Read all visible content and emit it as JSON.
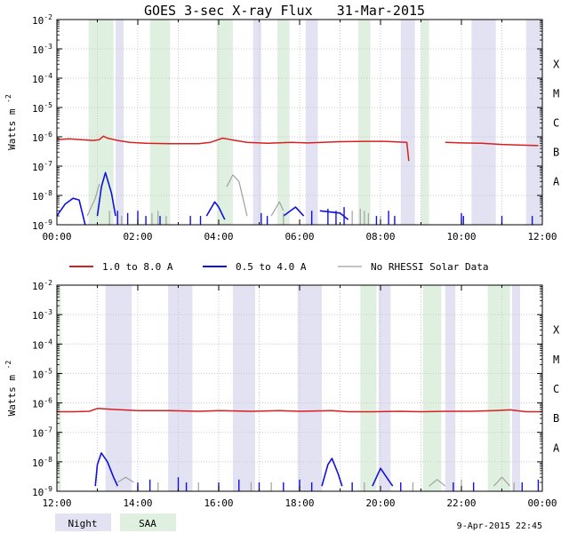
{
  "chart_data": {
    "type": "line",
    "title": "GOES 3-sec X-ray Flux   31-Mar-2015",
    "ylabel": "Watts m",
    "ylabel_sup": "-2",
    "yscale": "log",
    "ylim": [
      1e-09,
      0.01
    ],
    "y_ticks": [
      {
        "exp": "-2"
      },
      {
        "exp": "-3"
      },
      {
        "exp": "-4"
      },
      {
        "exp": "-5"
      },
      {
        "exp": "-6"
      },
      {
        "exp": "-7"
      },
      {
        "exp": "-8"
      },
      {
        "exp": "-9"
      }
    ],
    "y_tick_base": "10",
    "flare_classes": [
      {
        "label": "X",
        "value": 0.0001
      },
      {
        "label": "M",
        "value": 1e-05
      },
      {
        "label": "C",
        "value": 1e-06
      },
      {
        "label": "B",
        "value": 1e-07
      },
      {
        "label": "A",
        "value": 1e-08
      }
    ],
    "legend": {
      "placement": "middle",
      "entries": [
        {
          "label": "1.0 to 8.0 A",
          "color": "#d62020"
        },
        {
          "label": "0.5 to 4.0 A",
          "color": "#1010e0"
        },
        {
          "label": "No RHESSI Solar Data",
          "color": "#a0a0a0"
        }
      ]
    },
    "shade_legend": [
      {
        "label": "Night",
        "color": "#e2e2f2"
      },
      {
        "label": "SAA",
        "color": "#e0f0e0"
      }
    ],
    "footer": "9-Apr-2015 22:45",
    "panels": [
      {
        "x_range_hours": [
          0,
          12
        ],
        "x_tick_labels": [
          "00:00",
          "02:00",
          "04:00",
          "06:00",
          "08:00",
          "10:00",
          "12:00"
        ],
        "night": [
          [
            1.45,
            1.65
          ],
          [
            4.85,
            5.05
          ],
          [
            6.15,
            6.45
          ],
          [
            8.5,
            8.85
          ],
          [
            10.25,
            10.85
          ],
          [
            11.6,
            12
          ]
        ],
        "saa": [
          [
            0.78,
            1.4
          ],
          [
            2.3,
            2.8
          ],
          [
            3.95,
            4.35
          ],
          [
            5.45,
            5.75
          ],
          [
            7.45,
            7.75
          ],
          [
            9.0,
            9.2
          ]
        ],
        "long": [
          [
            0.0,
            8e-07
          ],
          [
            0.3,
            8.5e-07
          ],
          [
            0.6,
            8e-07
          ],
          [
            0.9,
            7.5e-07
          ],
          [
            1.05,
            8e-07
          ],
          [
            1.15,
            1.05e-06
          ],
          [
            1.25,
            9e-07
          ],
          [
            1.5,
            7.5e-07
          ],
          [
            1.8,
            6.5e-07
          ],
          [
            2.2,
            6e-07
          ],
          [
            2.8,
            5.8e-07
          ],
          [
            3.5,
            5.8e-07
          ],
          [
            3.8,
            6.5e-07
          ],
          [
            4.1,
            9e-07
          ],
          [
            4.3,
            8e-07
          ],
          [
            4.7,
            6.5e-07
          ],
          [
            5.2,
            6e-07
          ],
          [
            5.8,
            6.5e-07
          ],
          [
            6.2,
            6.2e-07
          ],
          [
            7.0,
            6.8e-07
          ],
          [
            7.6,
            7e-07
          ],
          [
            8.1,
            7e-07
          ],
          [
            8.65,
            6.5e-07
          ],
          [
            8.7,
            1.5e-07
          ],
          null,
          [
            9.6,
            6.5e-07
          ],
          [
            10.0,
            6.2e-07
          ],
          [
            10.5,
            6e-07
          ],
          [
            11.0,
            5.5e-07
          ],
          [
            11.5,
            5.2e-07
          ],
          [
            11.9,
            5e-07
          ]
        ],
        "short": [
          [
            0.0,
            2e-09
          ],
          [
            0.2,
            5e-09
          ],
          [
            0.4,
            8e-09
          ],
          [
            0.55,
            7e-09
          ],
          [
            0.7,
            1e-09
          ],
          null,
          [
            1.0,
            2e-09
          ],
          [
            1.1,
            2e-08
          ],
          [
            1.2,
            6e-08
          ],
          [
            1.35,
            1.2e-08
          ],
          [
            1.45,
            2e-09
          ],
          null,
          [
            3.7,
            2e-09
          ],
          [
            3.9,
            6e-09
          ],
          [
            4.0,
            4e-09
          ],
          [
            4.15,
            1.5e-09
          ],
          null,
          [
            5.6,
            2e-09
          ],
          [
            5.9,
            4e-09
          ],
          [
            6.1,
            2e-09
          ],
          null,
          [
            6.5,
            3e-09
          ],
          [
            7.0,
            2.5e-09
          ],
          [
            7.2,
            1.5e-09
          ]
        ],
        "gray": [
          [
            0.75,
            2e-09
          ],
          [
            0.95,
            8e-09
          ],
          [
            1.05,
            2.5e-08
          ],
          null,
          [
            4.2,
            2e-08
          ],
          [
            4.35,
            5e-08
          ],
          [
            4.5,
            3e-08
          ],
          [
            4.6,
            8e-09
          ],
          [
            4.7,
            2e-09
          ],
          null,
          [
            5.3,
            2e-09
          ],
          [
            5.5,
            6e-09
          ],
          [
            5.6,
            3e-09
          ]
        ],
        "short_spikes": [
          [
            1.5,
            3e-09
          ],
          [
            1.75,
            2.5e-09
          ],
          [
            2.0,
            3e-09
          ],
          [
            2.2,
            2e-09
          ],
          [
            2.55,
            2e-09
          ],
          [
            3.3,
            2e-09
          ],
          [
            3.55,
            2e-09
          ],
          [
            5.05,
            2.5e-09
          ],
          [
            5.2,
            2e-09
          ],
          [
            6.3,
            3e-09
          ],
          [
            6.7,
            3.5e-09
          ],
          [
            6.9,
            3e-09
          ],
          [
            7.1,
            4e-09
          ],
          [
            7.9,
            2e-09
          ],
          [
            8.2,
            3e-09
          ],
          [
            8.35,
            2e-09
          ],
          [
            10.0,
            2.5e-09
          ],
          [
            10.05,
            2e-09
          ],
          [
            11.0,
            2e-09
          ],
          [
            11.75,
            2e-09
          ]
        ],
        "gray_spikes": [
          [
            1.3,
            3e-09
          ],
          [
            1.6,
            2e-09
          ],
          [
            2.35,
            2.5e-09
          ],
          [
            2.5,
            3e-09
          ],
          [
            2.7,
            2e-09
          ],
          [
            5.6,
            2.5e-09
          ],
          [
            7.3,
            3e-09
          ],
          [
            7.5,
            3.5e-09
          ],
          [
            7.6,
            3e-09
          ],
          [
            7.7,
            2.5e-09
          ],
          [
            8.0,
            2e-09
          ]
        ]
      },
      {
        "x_range_hours": [
          12,
          24
        ],
        "x_tick_labels": [
          "12:00",
          "14:00",
          "16:00",
          "18:00",
          "20:00",
          "22:00",
          "00:00"
        ],
        "night": [
          [
            13.2,
            13.85
          ],
          [
            14.75,
            15.35
          ],
          [
            16.35,
            16.9
          ],
          [
            17.95,
            18.55
          ],
          [
            19.95,
            20.25
          ],
          [
            21.6,
            21.85
          ],
          [
            23.25,
            23.45
          ]
        ],
        "saa": [
          [
            19.5,
            19.9
          ],
          [
            21.05,
            21.5
          ],
          [
            22.65,
            23.2
          ],
          [
            12,
            12.1
          ]
        ],
        "long": [
          [
            12.0,
            5e-07
          ],
          [
            12.4,
            5e-07
          ],
          [
            12.8,
            5.2e-07
          ],
          [
            13.0,
            6.5e-07
          ],
          [
            13.4,
            6e-07
          ],
          [
            14.0,
            5.5e-07
          ],
          [
            14.8,
            5.5e-07
          ],
          [
            15.5,
            5.2e-07
          ],
          [
            16.0,
            5.5e-07
          ],
          [
            16.8,
            5.2e-07
          ],
          [
            17.5,
            5.5e-07
          ],
          [
            18.0,
            5.2e-07
          ],
          [
            18.8,
            5.5e-07
          ],
          [
            19.2,
            5e-07
          ],
          [
            19.8,
            5e-07
          ],
          [
            20.5,
            5.2e-07
          ],
          [
            21.0,
            5e-07
          ],
          [
            21.6,
            5.2e-07
          ],
          [
            22.2,
            5.2e-07
          ],
          [
            22.8,
            5.5e-07
          ],
          [
            23.2,
            5.8e-07
          ],
          [
            23.6,
            5e-07
          ],
          [
            24.0,
            5e-07
          ]
        ],
        "short": [
          [
            12.95,
            1.5e-09
          ],
          [
            13.0,
            8e-09
          ],
          [
            13.1,
            2e-08
          ],
          [
            13.25,
            1e-08
          ],
          [
            13.4,
            3e-09
          ],
          [
            13.5,
            1.5e-09
          ],
          null,
          [
            18.55,
            1.5e-09
          ],
          [
            18.7,
            8e-09
          ],
          [
            18.8,
            1.3e-08
          ],
          [
            18.95,
            4e-09
          ],
          [
            19.05,
            1.5e-09
          ],
          null,
          [
            19.8,
            1.5e-09
          ],
          [
            20.0,
            6e-09
          ],
          [
            20.15,
            3e-09
          ],
          [
            20.3,
            1.5e-09
          ]
        ],
        "gray": [
          [
            13.5,
            2e-09
          ],
          [
            13.7,
            3e-09
          ],
          [
            13.9,
            2e-09
          ],
          null,
          [
            21.2,
            1.5e-09
          ],
          [
            21.4,
            2.5e-09
          ],
          [
            21.6,
            1.5e-09
          ],
          null,
          [
            22.8,
            1.5e-09
          ],
          [
            23.0,
            3e-09
          ],
          [
            23.2,
            1.5e-09
          ]
        ],
        "short_spikes": [
          [
            14.0,
            2e-09
          ],
          [
            14.3,
            2.5e-09
          ],
          [
            15.0,
            3e-09
          ],
          [
            15.2,
            2e-09
          ],
          [
            16.0,
            2e-09
          ],
          [
            16.5,
            2.5e-09
          ],
          [
            17.0,
            2e-09
          ],
          [
            17.6,
            2e-09
          ],
          [
            18.0,
            2.5e-09
          ],
          [
            18.3,
            2e-09
          ],
          [
            19.3,
            2e-09
          ],
          [
            20.5,
            2e-09
          ],
          [
            21.8,
            2e-09
          ],
          [
            22.3,
            2e-09
          ],
          [
            23.5,
            2e-09
          ],
          [
            23.9,
            2.5e-09
          ]
        ],
        "gray_spikes": [
          [
            14.5,
            2e-09
          ],
          [
            15.5,
            2e-09
          ],
          [
            16.8,
            2e-09
          ],
          [
            17.3,
            2e-09
          ],
          [
            19.6,
            2e-09
          ],
          [
            20.8,
            2e-09
          ],
          [
            22.0,
            2.5e-09
          ],
          [
            23.3,
            2e-09
          ]
        ]
      }
    ]
  }
}
